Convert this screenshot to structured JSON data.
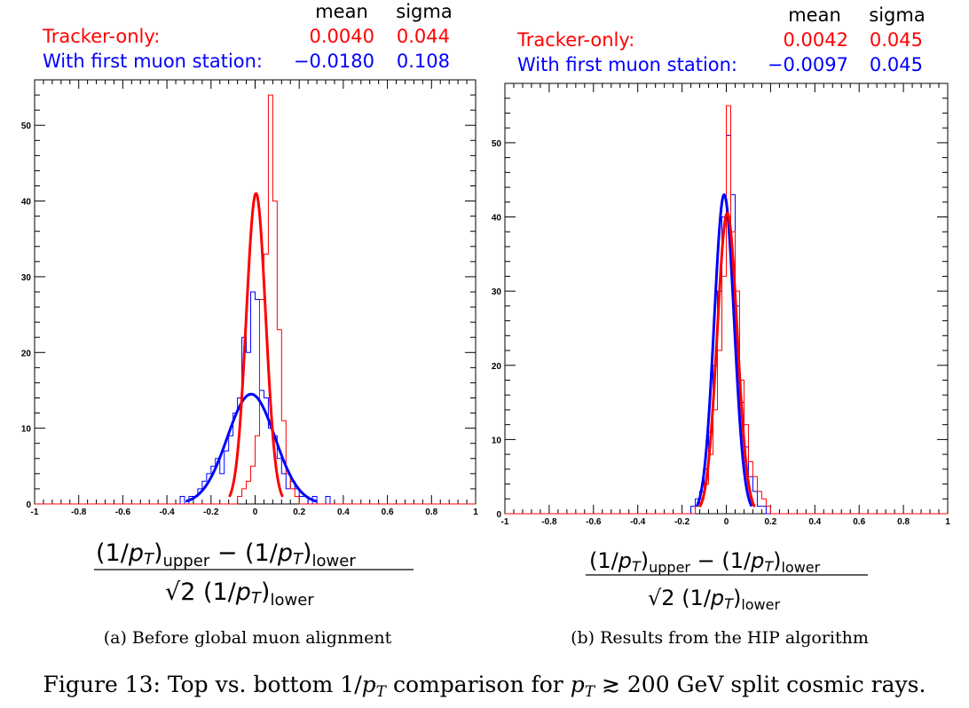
{
  "figure_caption": {
    "label": "Figure 13:",
    "text": "Top vs. bottom 1/p_T comparison for p_T ≳ 200 GeV split cosmic rays."
  },
  "xlabel": {
    "numerator": "(1/p_T)_upper − (1/p_T)_lower",
    "denominator": "√2 (1/p_T)_lower"
  },
  "chart_data": [
    {
      "type": "histogram",
      "subcaption": "(a) Before global muon alignment",
      "stats_header": {
        "mean": "mean",
        "sigma": "sigma"
      },
      "xlim": [
        -1,
        1
      ],
      "ylim": [
        0,
        56
      ],
      "xticks": [
        "-1",
        "-0.8",
        "-0.6",
        "-0.4",
        "-0.2",
        "0",
        "0.2",
        "0.4",
        "0.6",
        "0.8",
        "1"
      ],
      "yticks": [
        "0",
        "10",
        "20",
        "30",
        "40",
        "50"
      ],
      "bin_start": -0.34,
      "bin_width": 0.02,
      "series": [
        {
          "name": "Tracker-only:",
          "color": "#ff0000",
          "mean": "0.0040",
          "sigma": "0.044",
          "fit_amplitude": 41,
          "fit_mean": 0.004,
          "fit_sigma": 0.044,
          "counts": [
            0,
            0,
            0,
            0,
            0,
            0,
            0,
            0,
            0,
            0,
            0,
            0,
            0,
            1,
            2,
            3,
            5,
            9,
            27,
            33,
            54,
            40,
            23,
            11,
            4,
            2,
            1,
            0,
            0,
            0,
            0,
            0,
            0,
            0
          ]
        },
        {
          "name": "With first muon station:",
          "color": "#0000ff",
          "mean": "−0.0180",
          "sigma": "0.108",
          "fit_amplitude": 14.5,
          "fit_mean": -0.018,
          "fit_sigma": 0.108,
          "counts": [
            1,
            0,
            1,
            1,
            2,
            3,
            4,
            5,
            6,
            4,
            7,
            9,
            12,
            14,
            22,
            20,
            28,
            27,
            15,
            14,
            10,
            9,
            6,
            4,
            2,
            3,
            2,
            1,
            1,
            0,
            1,
            0,
            0,
            1
          ]
        }
      ]
    },
    {
      "type": "histogram",
      "subcaption": "(b) Results from the HIP algorithm",
      "stats_header": {
        "mean": "mean",
        "sigma": "sigma"
      },
      "xlim": [
        -1,
        1
      ],
      "ylim": [
        0,
        58
      ],
      "xticks": [
        "-1",
        "-0.8",
        "-0.6",
        "-0.4",
        "-0.2",
        "0",
        "0.2",
        "0.4",
        "0.6",
        "0.8",
        "1"
      ],
      "yticks": [
        "0",
        "10",
        "20",
        "30",
        "40",
        "50"
      ],
      "bin_start": -0.2,
      "bin_width": 0.02,
      "series": [
        {
          "name": "Tracker-only:",
          "color": "#ff0000",
          "mean": "0.0042",
          "sigma": "0.045",
          "fit_amplitude": 40.5,
          "fit_mean": 0.0042,
          "fit_sigma": 0.045,
          "counts": [
            0,
            0,
            0,
            1,
            2,
            4,
            8,
            14,
            22,
            32,
            55,
            38,
            30,
            18,
            12,
            7,
            5,
            3,
            2,
            1
          ]
        },
        {
          "name": "With first muon station:",
          "color": "#0000ff",
          "mean": "−0.0097",
          "sigma": "0.045",
          "fit_amplitude": 43,
          "fit_mean": -0.0097,
          "fit_sigma": 0.045,
          "counts": [
            0,
            0,
            1,
            2,
            3,
            6,
            11,
            20,
            30,
            40,
            51,
            43,
            28,
            15,
            9,
            5,
            3,
            1,
            1,
            0
          ]
        }
      ]
    }
  ]
}
